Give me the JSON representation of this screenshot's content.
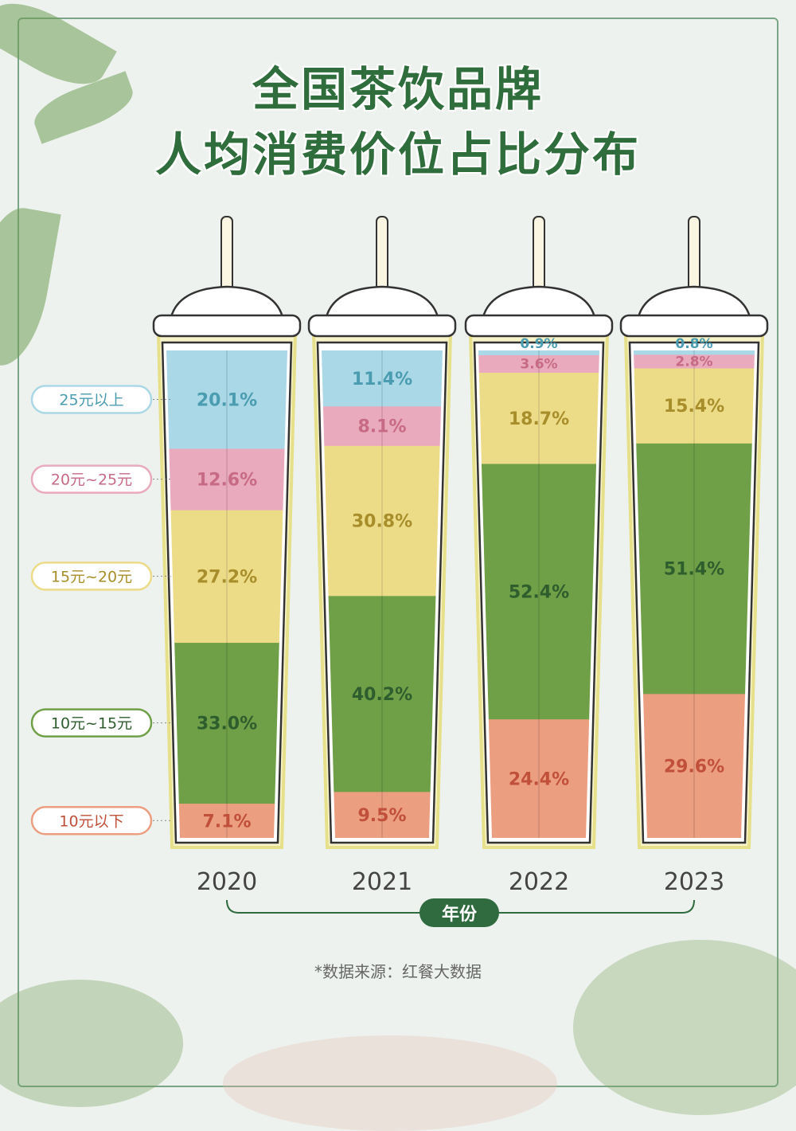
{
  "title_line1": "全国茶饮品牌",
  "title_line2": "人均消费价位占比分布",
  "source": "*数据来源：红餐大数据",
  "chart_data": {
    "type": "bar",
    "stacked": true,
    "normalized": true,
    "xlabel": "年份",
    "categories": [
      "2020",
      "2021",
      "2022",
      "2023"
    ],
    "series": [
      {
        "name": "10元以下",
        "values": [
          7.1,
          9.5,
          24.4,
          29.6
        ],
        "color": "#ec9e80",
        "text_color": "#c0503a"
      },
      {
        "name": "10元~15元",
        "values": [
          33.0,
          40.2,
          52.4,
          51.4
        ],
        "color": "#6f9f46",
        "text_color": "#2e5d2e"
      },
      {
        "name": "15元~20元",
        "values": [
          27.2,
          30.8,
          18.7,
          15.4
        ],
        "color": "#ecdc88",
        "text_color": "#a88e2a"
      },
      {
        "name": "20元~25元",
        "values": [
          12.6,
          8.1,
          3.6,
          2.8
        ],
        "color": "#e9aabd",
        "text_color": "#c76a86"
      },
      {
        "name": "25元以上",
        "values": [
          20.1,
          11.4,
          0.9,
          0.8
        ],
        "color": "#aad8e6",
        "text_color": "#4a9cb0"
      }
    ],
    "value_labels": [
      [
        "7.1%",
        "9.5%",
        "24.4%",
        "29.6%"
      ],
      [
        "33.0%",
        "40.2%",
        "52.4%",
        "51.4%"
      ],
      [
        "27.2%",
        "30.8%",
        "18.7%",
        "15.4%"
      ],
      [
        "12.6%",
        "8.1%",
        "3.6%",
        "2.8%"
      ],
      [
        "20.1%",
        "11.4%",
        "0.9%",
        "0.8%"
      ]
    ],
    "legend": "left",
    "ylim": [
      0,
      100
    ]
  }
}
